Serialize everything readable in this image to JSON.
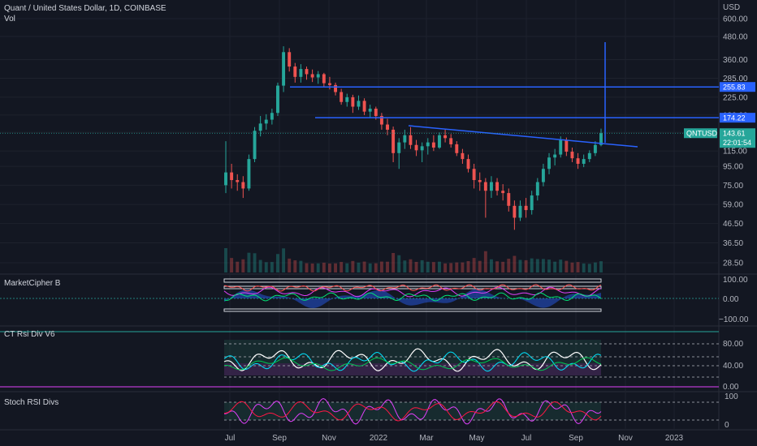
{
  "header": {
    "title": "Quant / United States Dollar, 1D, COINBASE",
    "volume_label": "Vol"
  },
  "currency": "USD",
  "price_tag": {
    "symbol": "QNTUSD",
    "price": "143.61",
    "countdown": "22:01:54",
    "color": "#26a69a"
  },
  "level_tags": [
    {
      "label": "255.83",
      "value": 255.83
    },
    {
      "label": "174.22",
      "value": 174.22
    }
  ],
  "colors": {
    "background": "#131722",
    "up": "#26a69a",
    "down": "#ef5350",
    "drawing": "#2962ff",
    "grid": "#1e222d"
  },
  "chart_data": {
    "type": "candlestick",
    "price_axis": {
      "scale": "log",
      "ticks": [
        "600.00",
        "480.00",
        "360.00",
        "285.00",
        "225.00",
        "180.00",
        "145.00",
        "115.00",
        "95.00",
        "75.00",
        "59.00",
        "46.50",
        "36.50",
        "28.50"
      ]
    },
    "time_axis": {
      "ticks": [
        "Jul",
        "Sep",
        "Nov",
        "2022",
        "Mar",
        "May",
        "Jul",
        "Sep",
        "Nov",
        "2023"
      ]
    },
    "ohlc_weekly_approx": [
      {
        "week": "2021-06-28",
        "o": 75,
        "h": 130,
        "l": 68,
        "c": 88
      },
      {
        "week": "2021-07-05",
        "o": 88,
        "h": 98,
        "l": 72,
        "c": 80
      },
      {
        "week": "2021-07-12",
        "o": 80,
        "h": 86,
        "l": 70,
        "c": 78
      },
      {
        "week": "2021-07-19",
        "o": 78,
        "h": 84,
        "l": 64,
        "c": 72
      },
      {
        "week": "2021-07-26",
        "o": 72,
        "h": 110,
        "l": 70,
        "c": 104
      },
      {
        "week": "2021-08-02",
        "o": 104,
        "h": 155,
        "l": 100,
        "c": 148
      },
      {
        "week": "2021-08-09",
        "o": 148,
        "h": 178,
        "l": 138,
        "c": 162
      },
      {
        "week": "2021-08-16",
        "o": 162,
        "h": 182,
        "l": 150,
        "c": 170
      },
      {
        "week": "2021-08-23",
        "o": 170,
        "h": 195,
        "l": 160,
        "c": 185
      },
      {
        "week": "2021-08-30",
        "o": 185,
        "h": 270,
        "l": 178,
        "c": 260
      },
      {
        "week": "2021-09-06",
        "o": 260,
        "h": 425,
        "l": 240,
        "c": 395
      },
      {
        "week": "2021-09-13",
        "o": 395,
        "h": 415,
        "l": 310,
        "c": 330
      },
      {
        "week": "2021-09-20",
        "o": 330,
        "h": 345,
        "l": 270,
        "c": 290
      },
      {
        "week": "2021-09-27",
        "o": 290,
        "h": 340,
        "l": 270,
        "c": 320
      },
      {
        "week": "2021-10-04",
        "o": 320,
        "h": 330,
        "l": 280,
        "c": 300
      },
      {
        "week": "2021-10-11",
        "o": 300,
        "h": 318,
        "l": 272,
        "c": 288
      },
      {
        "week": "2021-10-18",
        "o": 288,
        "h": 312,
        "l": 266,
        "c": 300
      },
      {
        "week": "2021-10-25",
        "o": 300,
        "h": 305,
        "l": 255,
        "c": 268
      },
      {
        "week": "2021-11-01",
        "o": 268,
        "h": 290,
        "l": 248,
        "c": 262
      },
      {
        "week": "2021-11-08",
        "o": 262,
        "h": 270,
        "l": 230,
        "c": 240
      },
      {
        "week": "2021-11-15",
        "o": 240,
        "h": 250,
        "l": 205,
        "c": 212
      },
      {
        "week": "2021-11-22",
        "o": 212,
        "h": 235,
        "l": 200,
        "c": 225
      },
      {
        "week": "2021-11-29",
        "o": 225,
        "h": 232,
        "l": 185,
        "c": 200
      },
      {
        "week": "2021-12-06",
        "o": 200,
        "h": 230,
        "l": 192,
        "c": 215
      },
      {
        "week": "2021-12-13",
        "o": 215,
        "h": 222,
        "l": 180,
        "c": 188
      },
      {
        "week": "2021-12-20",
        "o": 188,
        "h": 205,
        "l": 175,
        "c": 195
      },
      {
        "week": "2021-12-27",
        "o": 195,
        "h": 200,
        "l": 170,
        "c": 178
      },
      {
        "week": "2022-01-03",
        "o": 178,
        "h": 185,
        "l": 150,
        "c": 160
      },
      {
        "week": "2022-01-10",
        "o": 160,
        "h": 172,
        "l": 140,
        "c": 150
      },
      {
        "week": "2022-01-17",
        "o": 150,
        "h": 156,
        "l": 100,
        "c": 112
      },
      {
        "week": "2022-01-24",
        "o": 112,
        "h": 135,
        "l": 92,
        "c": 128
      },
      {
        "week": "2022-01-31",
        "o": 128,
        "h": 150,
        "l": 118,
        "c": 140
      },
      {
        "week": "2022-02-07",
        "o": 140,
        "h": 155,
        "l": 118,
        "c": 124
      },
      {
        "week": "2022-02-14",
        "o": 124,
        "h": 132,
        "l": 108,
        "c": 116
      },
      {
        "week": "2022-02-21",
        "o": 116,
        "h": 128,
        "l": 100,
        "c": 122
      },
      {
        "week": "2022-02-28",
        "o": 122,
        "h": 135,
        "l": 110,
        "c": 128
      },
      {
        "week": "2022-03-07",
        "o": 128,
        "h": 140,
        "l": 115,
        "c": 120
      },
      {
        "week": "2022-03-14",
        "o": 120,
        "h": 145,
        "l": 118,
        "c": 140
      },
      {
        "week": "2022-03-21",
        "o": 140,
        "h": 150,
        "l": 128,
        "c": 135
      },
      {
        "week": "2022-03-28",
        "o": 135,
        "h": 142,
        "l": 120,
        "c": 125
      },
      {
        "week": "2022-04-04",
        "o": 125,
        "h": 130,
        "l": 108,
        "c": 112
      },
      {
        "week": "2022-04-11",
        "o": 112,
        "h": 118,
        "l": 98,
        "c": 104
      },
      {
        "week": "2022-04-18",
        "o": 104,
        "h": 110,
        "l": 88,
        "c": 92
      },
      {
        "week": "2022-04-25",
        "o": 92,
        "h": 98,
        "l": 72,
        "c": 80
      },
      {
        "week": "2022-05-02",
        "o": 80,
        "h": 88,
        "l": 70,
        "c": 78
      },
      {
        "week": "2022-05-09",
        "o": 78,
        "h": 82,
        "l": 50,
        "c": 70
      },
      {
        "week": "2022-05-16",
        "o": 70,
        "h": 84,
        "l": 64,
        "c": 78
      },
      {
        "week": "2022-05-23",
        "o": 78,
        "h": 82,
        "l": 66,
        "c": 70
      },
      {
        "week": "2022-05-30",
        "o": 70,
        "h": 76,
        "l": 62,
        "c": 68
      },
      {
        "week": "2022-06-06",
        "o": 68,
        "h": 72,
        "l": 54,
        "c": 58
      },
      {
        "week": "2022-06-13",
        "o": 58,
        "h": 62,
        "l": 43,
        "c": 50
      },
      {
        "week": "2022-06-20",
        "o": 50,
        "h": 62,
        "l": 48,
        "c": 58
      },
      {
        "week": "2022-06-27",
        "o": 58,
        "h": 64,
        "l": 50,
        "c": 55
      },
      {
        "week": "2022-07-04",
        "o": 55,
        "h": 70,
        "l": 52,
        "c": 66
      },
      {
        "week": "2022-07-11",
        "o": 66,
        "h": 82,
        "l": 62,
        "c": 78
      },
      {
        "week": "2022-07-18",
        "o": 78,
        "h": 98,
        "l": 74,
        "c": 92
      },
      {
        "week": "2022-07-25",
        "o": 92,
        "h": 112,
        "l": 86,
        "c": 106
      },
      {
        "week": "2022-08-01",
        "o": 106,
        "h": 118,
        "l": 96,
        "c": 110
      },
      {
        "week": "2022-08-08",
        "o": 110,
        "h": 138,
        "l": 106,
        "c": 132
      },
      {
        "week": "2022-08-15",
        "o": 132,
        "h": 136,
        "l": 108,
        "c": 114
      },
      {
        "week": "2022-08-22",
        "o": 114,
        "h": 120,
        "l": 100,
        "c": 105
      },
      {
        "week": "2022-08-29",
        "o": 105,
        "h": 112,
        "l": 92,
        "c": 98
      },
      {
        "week": "2022-09-05",
        "o": 98,
        "h": 110,
        "l": 94,
        "c": 104
      },
      {
        "week": "2022-09-12",
        "o": 104,
        "h": 116,
        "l": 100,
        "c": 112
      },
      {
        "week": "2022-09-19",
        "o": 112,
        "h": 130,
        "l": 108,
        "c": 124
      },
      {
        "week": "2022-09-26",
        "o": 124,
        "h": 152,
        "l": 122,
        "c": 143.61
      }
    ]
  }
}
